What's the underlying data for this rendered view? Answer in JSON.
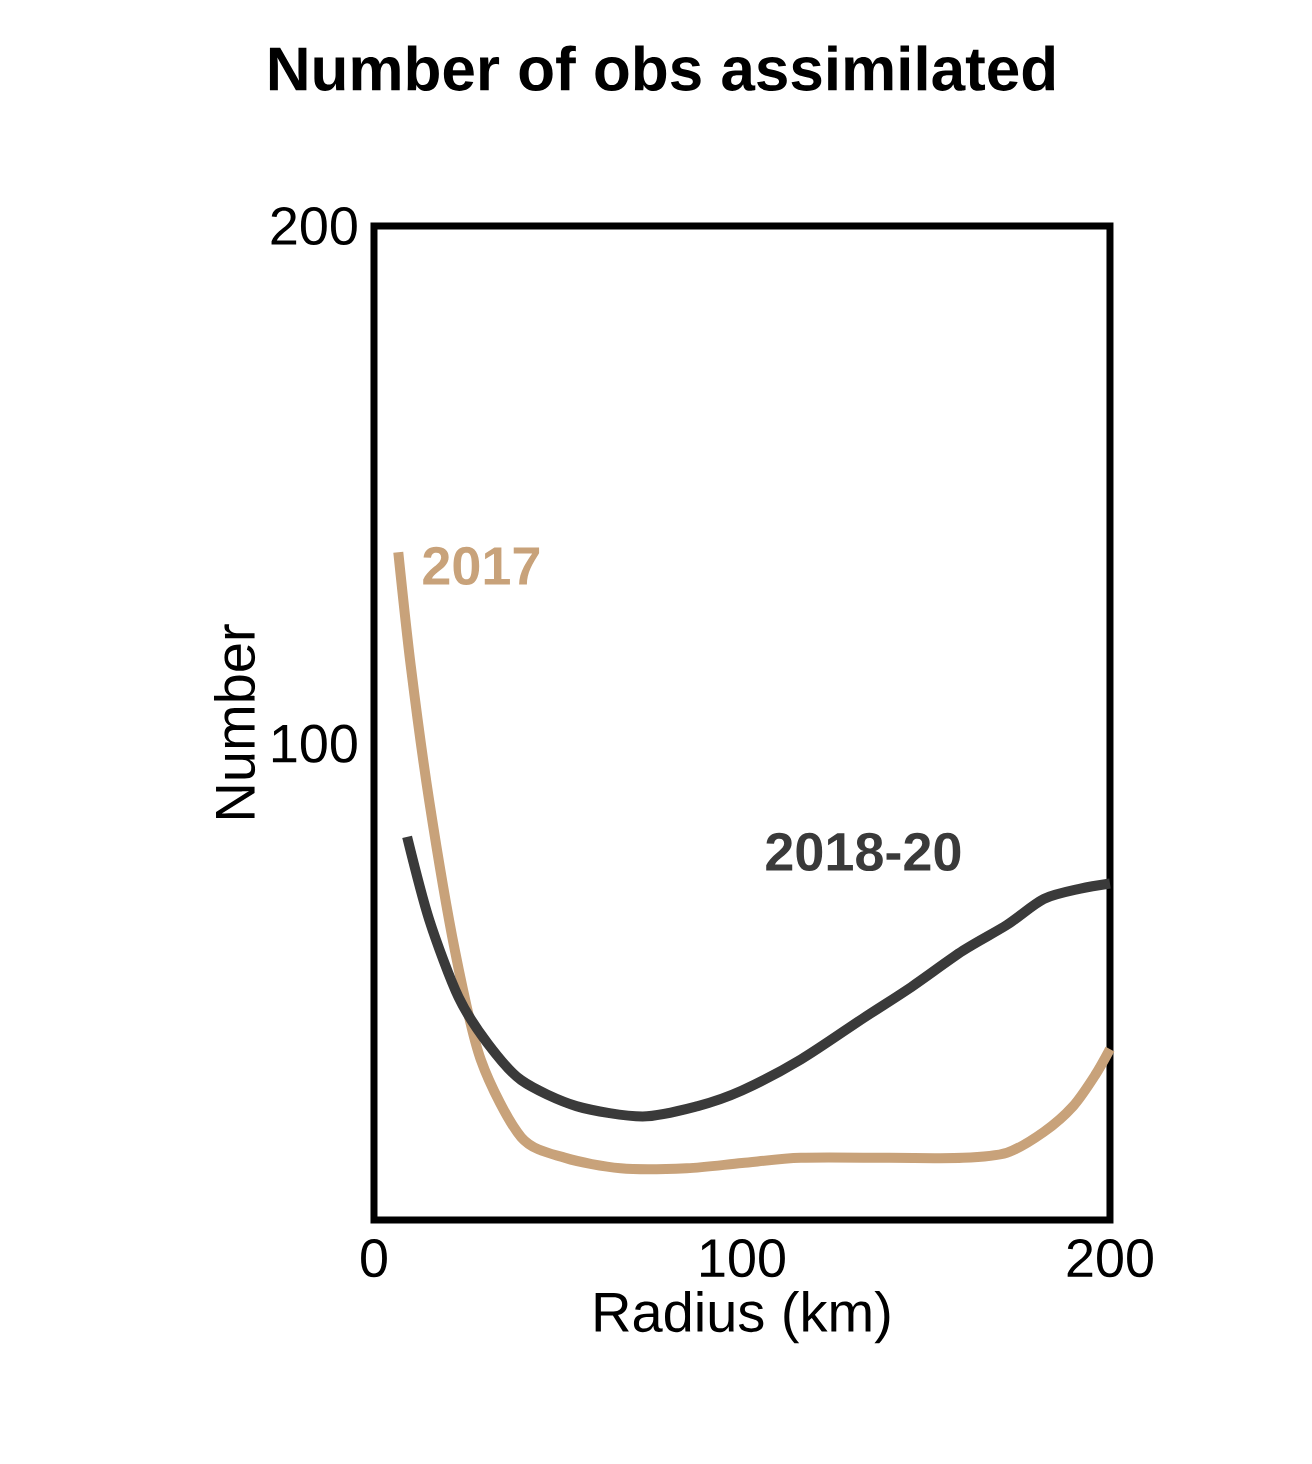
{
  "chart_data": {
    "type": "line",
    "title": "Number of obs assimilated",
    "xlabel": "Radius (km)",
    "ylabel": "Number",
    "xlim": [
      0,
      200
    ],
    "ylim": [
      8,
      200
    ],
    "xticks": [
      0,
      100,
      200
    ],
    "yticks": [
      100,
      200
    ],
    "grid": false,
    "legend": false,
    "marker": "none",
    "line_style": "solid",
    "series": [
      {
        "name": "2017",
        "color": "#c8a27a",
        "x": [
          6.6,
          10,
          15,
          22,
          29,
          40,
          52,
          67,
          85,
          100,
          116,
          140,
          160,
          172,
          182,
          190,
          196,
          200
        ],
        "values": [
          137,
          115,
          89,
          60,
          39,
          24,
          20,
          18,
          18,
          19,
          20,
          20,
          20,
          21,
          25,
          30,
          36,
          41
        ]
      },
      {
        "name": "2018-20",
        "color": "#3a3a3a",
        "x": [
          9,
          15,
          23,
          31,
          40,
          55,
          73,
          88,
          100,
          116,
          133,
          146,
          160,
          172,
          182,
          192,
          200
        ],
        "values": [
          82,
          66,
          51,
          42,
          35,
          30,
          28,
          30,
          33,
          39,
          47,
          53,
          60,
          65,
          70,
          72,
          73
        ]
      }
    ]
  }
}
